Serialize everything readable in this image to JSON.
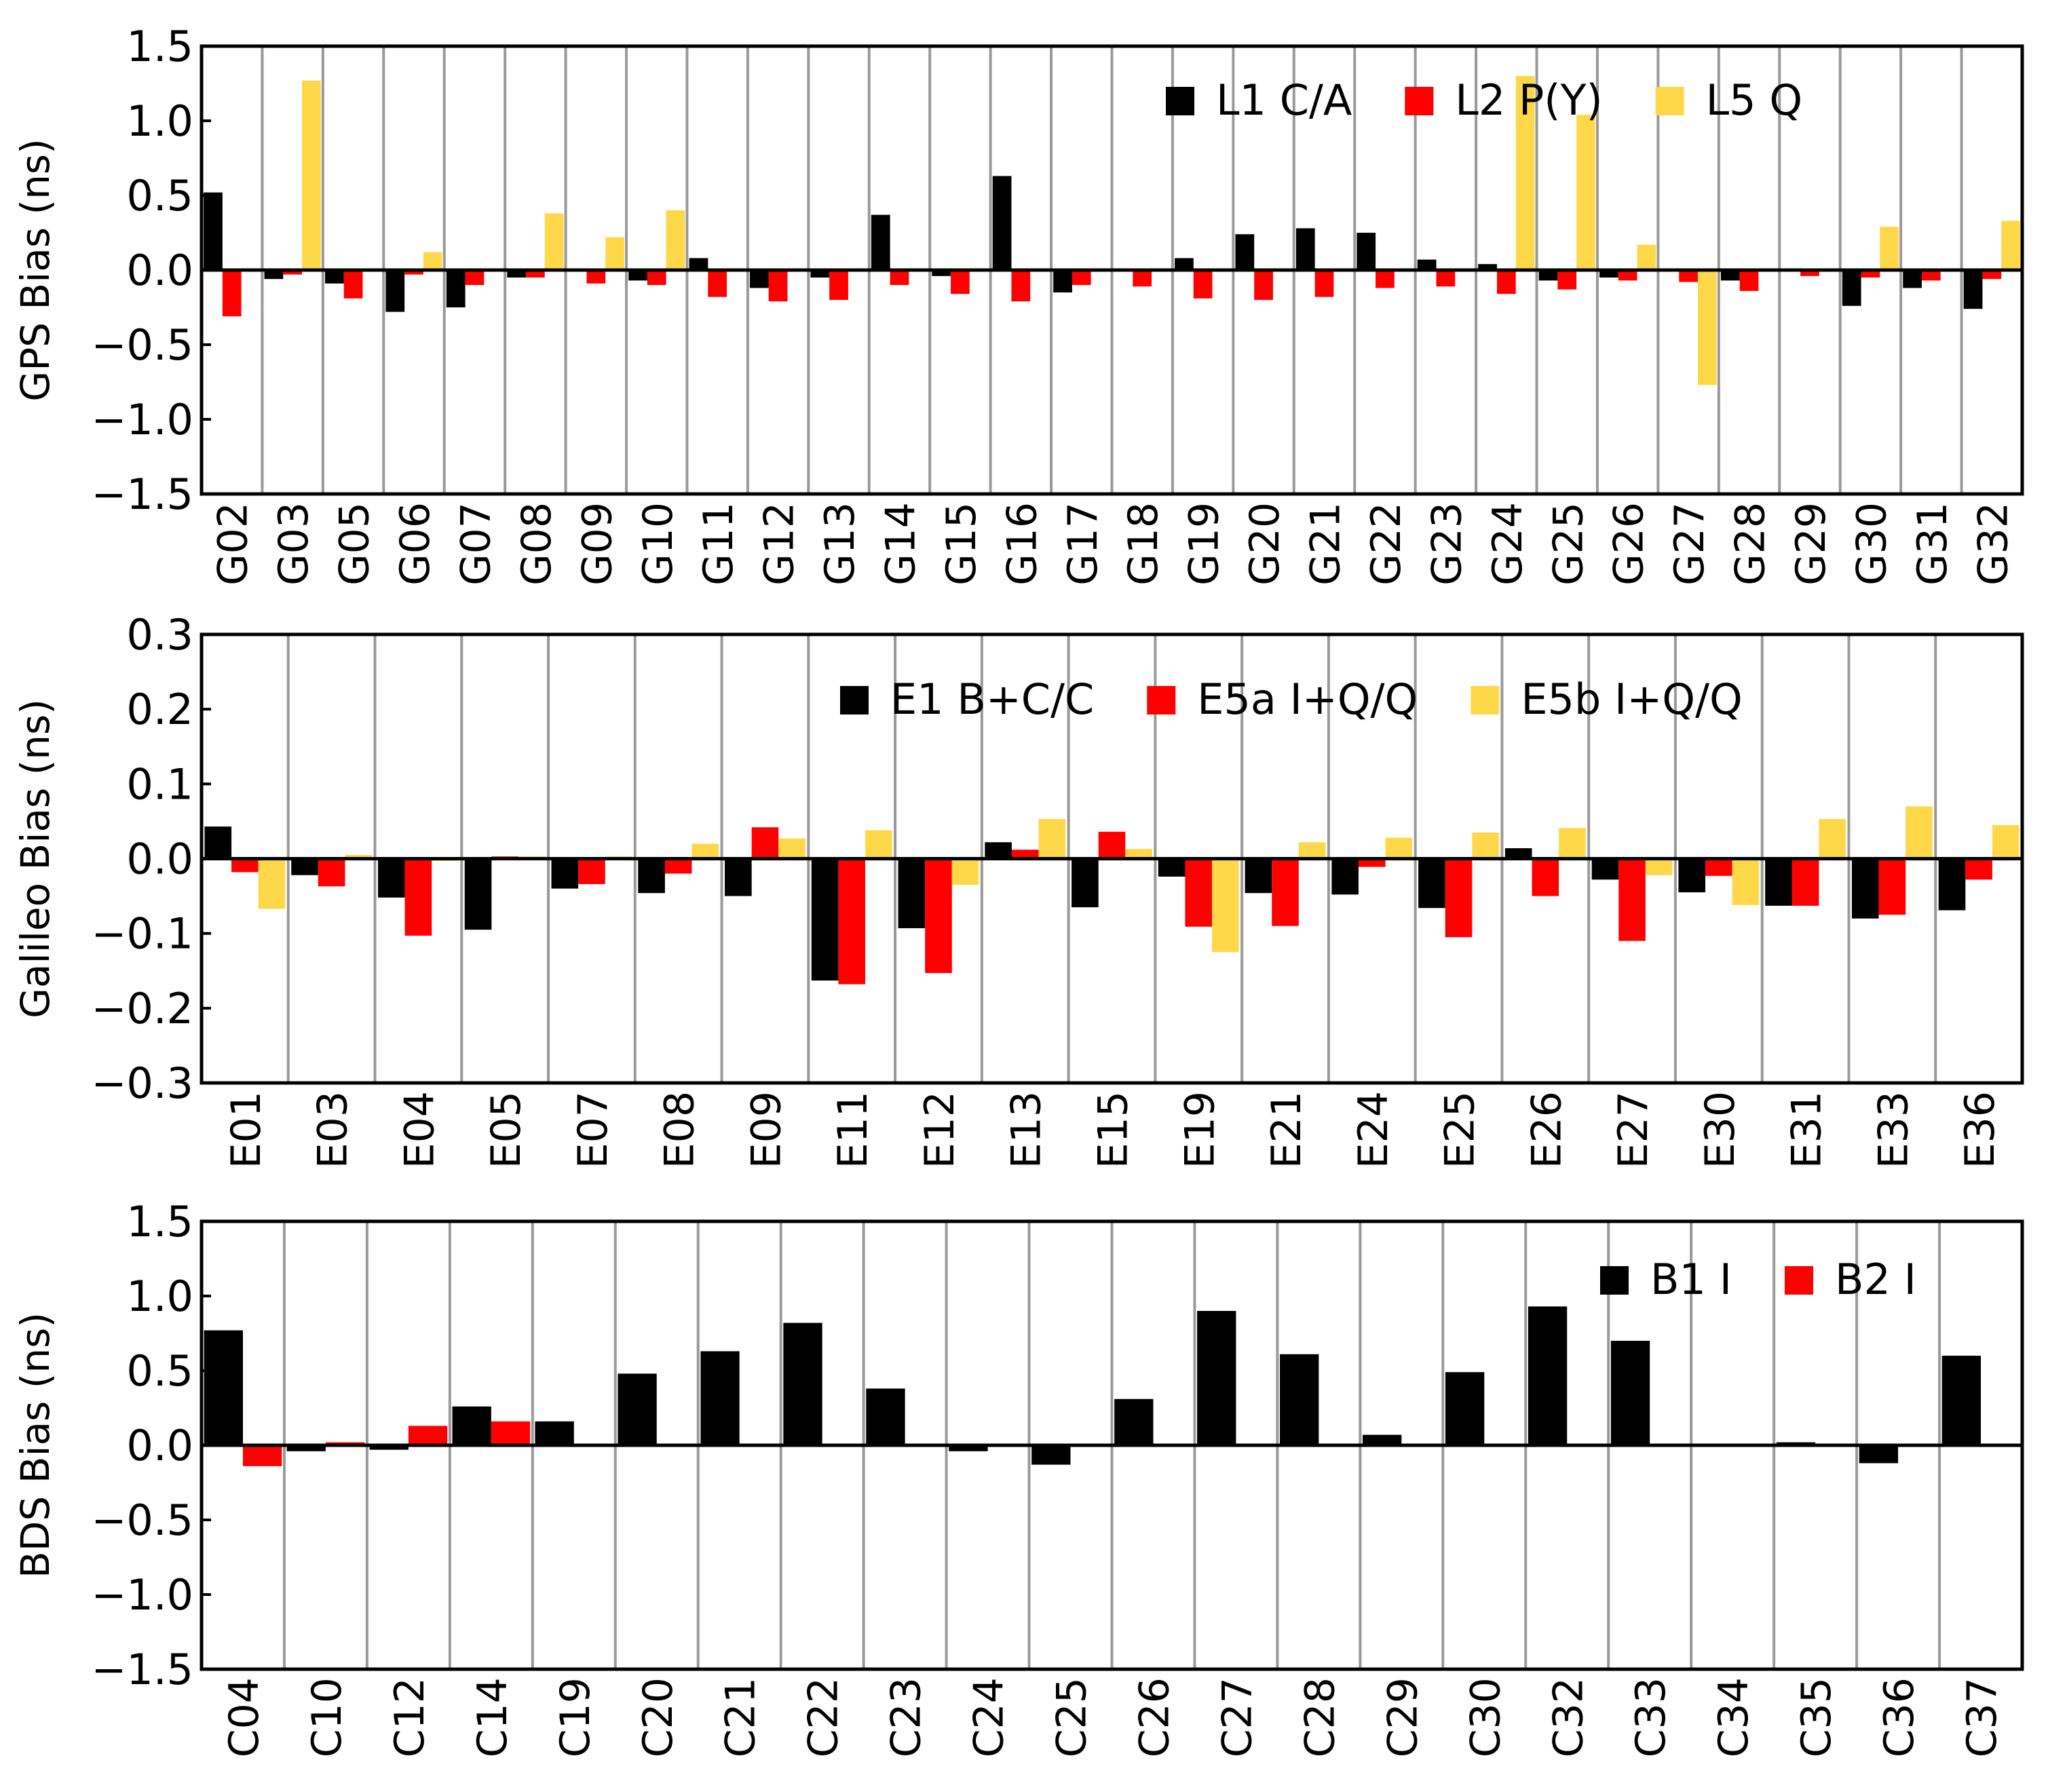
{
  "colors": {
    "black": "#000000",
    "red": "#ff0000",
    "yellow": "#ffd84a",
    "grid": "#999999"
  },
  "chart_data": [
    {
      "type": "bar",
      "ylabel": "GPS Bias (ns)",
      "ylim": [
        -1.5,
        1.5
      ],
      "yticks": [
        "1.5",
        "1.0",
        "0.5",
        "0.0",
        "−0.5",
        "−1.0",
        "−1.5"
      ],
      "categories": [
        "G02",
        "G03",
        "G05",
        "G06",
        "G07",
        "G08",
        "G09",
        "G10",
        "G11",
        "G12",
        "G13",
        "G14",
        "G15",
        "G16",
        "G17",
        "G18",
        "G19",
        "G20",
        "G21",
        "G22",
        "G23",
        "G24",
        "G25",
        "G26",
        "G27",
        "G28",
        "G29",
        "G30",
        "G31",
        "G32"
      ],
      "series": [
        {
          "name": "L1 C/A",
          "color": "#000000",
          "values": [
            0.52,
            -0.06,
            -0.09,
            -0.28,
            -0.25,
            -0.05,
            0.0,
            -0.07,
            0.08,
            -0.12,
            -0.05,
            0.37,
            -0.04,
            0.63,
            -0.15,
            0.0,
            0.08,
            0.24,
            0.28,
            0.25,
            0.07,
            0.04,
            -0.07,
            -0.05,
            0.0,
            -0.07,
            0.0,
            -0.24,
            -0.12,
            -0.26
          ]
        },
        {
          "name": "L2 P(Y)",
          "color": "#ff0000",
          "values": [
            -0.31,
            -0.03,
            -0.19,
            -0.03,
            -0.1,
            -0.05,
            -0.09,
            -0.1,
            -0.18,
            -0.21,
            -0.2,
            -0.1,
            -0.16,
            -0.21,
            -0.1,
            -0.11,
            -0.19,
            -0.2,
            -0.18,
            -0.12,
            -0.11,
            -0.16,
            -0.13,
            -0.07,
            -0.08,
            -0.14,
            -0.04,
            -0.05,
            -0.07,
            -0.06
          ]
        },
        {
          "name": "L5 Q",
          "color": "#ffd84a",
          "values": [
            null,
            1.27,
            null,
            0.12,
            null,
            0.38,
            0.22,
            0.4,
            null,
            null,
            null,
            null,
            null,
            null,
            null,
            null,
            null,
            null,
            null,
            null,
            null,
            1.3,
            1.04,
            0.17,
            -0.77,
            null,
            null,
            0.29,
            null,
            0.33
          ]
        }
      ]
    },
    {
      "type": "bar",
      "ylabel": "Galileo Bias (ns)",
      "ylim": [
        -0.3,
        0.3
      ],
      "yticks": [
        "0.3",
        "0.2",
        "0.1",
        "0.0",
        "−0.1",
        "−0.2",
        "−0.3"
      ],
      "categories": [
        "E01",
        "E03",
        "E04",
        "E05",
        "E07",
        "E08",
        "E09",
        "E11",
        "E12",
        "E13",
        "E15",
        "E19",
        "E21",
        "E24",
        "E25",
        "E26",
        "E27",
        "E30",
        "E31",
        "E33",
        "E36"
      ],
      "series": [
        {
          "name": "E1 B+C/C",
          "color": "#000000",
          "values": [
            0.043,
            -0.022,
            -0.052,
            -0.095,
            -0.04,
            -0.046,
            -0.05,
            -0.163,
            -0.093,
            0.022,
            -0.065,
            -0.024,
            -0.046,
            -0.048,
            -0.066,
            0.014,
            -0.028,
            -0.045,
            -0.063,
            -0.08,
            -0.069
          ]
        },
        {
          "name": "E5a I+Q/Q",
          "color": "#ff0000",
          "values": [
            -0.018,
            -0.037,
            -0.103,
            0.003,
            -0.034,
            -0.02,
            0.042,
            -0.168,
            -0.153,
            0.012,
            0.036,
            -0.091,
            -0.09,
            -0.011,
            -0.105,
            -0.05,
            -0.11,
            -0.023,
            -0.063,
            -0.075,
            -0.028
          ]
        },
        {
          "name": "E5b I+Q/Q",
          "color": "#ffd84a",
          "values": [
            -0.067,
            0.005,
            -0.003,
            0.003,
            0.003,
            0.02,
            0.027,
            0.038,
            -0.035,
            0.053,
            0.013,
            -0.125,
            0.022,
            0.028,
            0.035,
            0.041,
            -0.022,
            -0.062,
            0.053,
            0.07,
            0.045
          ]
        }
      ]
    },
    {
      "type": "bar",
      "ylabel": "BDS Bias (ns)",
      "ylim": [
        -1.5,
        1.5
      ],
      "yticks": [
        "1.5",
        "1.0",
        "0.5",
        "0.0",
        "−0.5",
        "−1.0",
        "−1.5"
      ],
      "categories": [
        "C04",
        "C10",
        "C12",
        "C14",
        "C19",
        "C20",
        "C21",
        "C22",
        "C23",
        "C24",
        "C25",
        "C26",
        "C27",
        "C28",
        "C29",
        "C30",
        "C32",
        "C33",
        "C34",
        "C35",
        "C36",
        "C37"
      ],
      "series": [
        {
          "name": "B1 I",
          "color": "#000000",
          "values": [
            0.77,
            -0.04,
            -0.03,
            0.26,
            0.16,
            0.48,
            0.63,
            0.82,
            0.38,
            -0.04,
            -0.13,
            0.31,
            0.9,
            0.61,
            0.07,
            0.49,
            0.93,
            0.7,
            0.0,
            0.02,
            -0.12,
            0.6
          ]
        },
        {
          "name": "B2 I",
          "color": "#ff0000",
          "values": [
            -0.14,
            0.02,
            0.13,
            0.16,
            null,
            null,
            null,
            null,
            null,
            null,
            null,
            null,
            null,
            null,
            null,
            null,
            null,
            null,
            null,
            null,
            null,
            null
          ]
        }
      ]
    }
  ]
}
